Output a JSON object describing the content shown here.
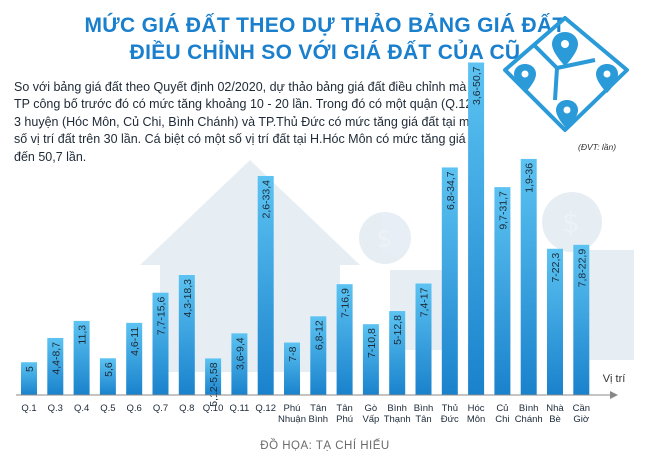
{
  "title_line1": "MỨC GIÁ ĐẤT THEO DỰ THẢO BẢNG GIÁ ĐẤT",
  "title_line2": "ĐIỀU CHỈNH SO VỚI GIÁ ĐẤT CỦA CŨ",
  "intro": "So với bảng giá đất theo Quyết định 02/2020, dự thảo bảng giá đất điều chỉnh mà TP công bố trước đó có mức tăng khoảng 10 - 20 lần. Trong đó có một quận (Q.12), 3 huyện (Hóc Môn, Củ Chi, Bình Chánh) và TP.Thủ Đức có mức tăng giá đất tại một số vị trí đất trên 30 lần. Cá biệt có một số vị trí đất tại H.Hóc Môn có mức tăng giá đến 50,7 lần.",
  "unit_note": "(ĐVT: lần)",
  "credit": "ĐỒ HỌA: TẠ CHÍ HIẾU",
  "colors": {
    "title": "#1a7fcd",
    "bar_top": "#5cc3f2",
    "bar_bottom": "#1a82cc",
    "axis": "#888888"
  },
  "icons": [
    "map-pin-icon",
    "dollar-coin-icon",
    "house-icon"
  ],
  "chart_data": {
    "type": "range-bar",
    "title": "MỨC GIÁ ĐẤT THEO DỰ THẢO BẢNG GIÁ ĐẤT ĐIỀU CHỈNH SO VỚI GIÁ ĐẤT CỦA CŨ",
    "xlabel": "Vị trí",
    "unit": "(ĐVT: lần)",
    "ylim": [
      0,
      52
    ],
    "categories": [
      [
        "Q.1"
      ],
      [
        "Q.3"
      ],
      [
        "Q.4"
      ],
      [
        "Q.5"
      ],
      [
        "Q.6"
      ],
      [
        "Q.7"
      ],
      [
        "Q.8"
      ],
      [
        "Q.10"
      ],
      [
        "Q.11"
      ],
      [
        "Q.12"
      ],
      [
        "Phú",
        "Nhuận"
      ],
      [
        "Tân",
        "Bình"
      ],
      [
        "Tân",
        "Phú"
      ],
      [
        "Gò",
        "Vấp"
      ],
      [
        "Bình",
        "Thạnh"
      ],
      [
        "Bình",
        "Tân"
      ],
      [
        "Thủ",
        "Đức"
      ],
      [
        "Hóc",
        "Môn"
      ],
      [
        "Củ",
        "Chi"
      ],
      [
        "Bình",
        "Chánh"
      ],
      [
        "Nhà",
        "Bè"
      ],
      [
        "Cần",
        "Giờ"
      ]
    ],
    "bars": [
      {
        "label": "5",
        "value": 5
      },
      {
        "label": "4,4-8,7",
        "value": 8.7
      },
      {
        "label": "11,3",
        "value": 11.3
      },
      {
        "label": "5,6",
        "value": 5.6
      },
      {
        "label": "4,6-11",
        "value": 11
      },
      {
        "label": "7,7-15,6",
        "value": 15.6
      },
      {
        "label": "4,3-18,3",
        "value": 18.3
      },
      {
        "label": "5,12-5,58",
        "value": 5.58
      },
      {
        "label": "3,6-9,4",
        "value": 9.4
      },
      {
        "label": "2,6-33,4",
        "value": 33.4
      },
      {
        "label": "7-8",
        "value": 8
      },
      {
        "label": "6,8-12",
        "value": 12
      },
      {
        "label": "7-16,9",
        "value": 16.9
      },
      {
        "label": "7-10,8",
        "value": 10.8
      },
      {
        "label": "5-12,8",
        "value": 12.8
      },
      {
        "label": "7,4-17",
        "value": 17
      },
      {
        "label": "6,8-34,7",
        "value": 34.7
      },
      {
        "label": "3,6-50,7",
        "value": 50.7
      },
      {
        "label": "9,7-31,7",
        "value": 31.7
      },
      {
        "label": "1,9-36",
        "value": 36
      },
      {
        "label": "7-22,3",
        "value": 22.3
      },
      {
        "label": "7,8-22,9",
        "value": 22.9
      }
    ]
  }
}
